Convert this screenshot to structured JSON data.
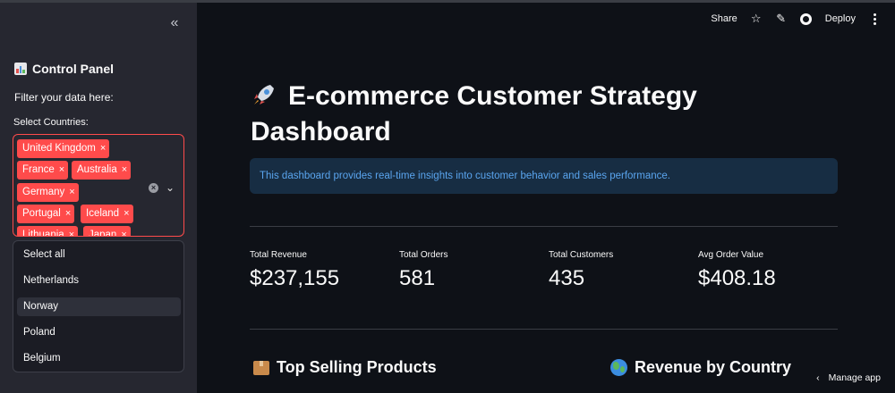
{
  "sidebar": {
    "collapse_glyph": "«",
    "title": "Control Panel",
    "subtitle": "Filter your data here:",
    "countries_label": "Select Countries:",
    "selected_tags": [
      "United Kingdom",
      "France",
      "Australia",
      "Germany",
      "Portugal",
      "Iceland",
      "Lithuania",
      "Japan"
    ],
    "tag_remove_glyph": "×",
    "clear_glyph": "×",
    "chevron_glyph": "⌄",
    "dropdown_options": [
      "Select all",
      "Netherlands",
      "Norway",
      "Poland",
      "Belgium"
    ],
    "hovered_option": "Norway"
  },
  "topbar": {
    "share_label": "Share",
    "deploy_label": "Deploy",
    "icons": [
      "star-icon",
      "pencil-icon",
      "github-icon",
      "more-vertical-icon"
    ]
  },
  "main": {
    "title": "E-commerce Customer Strategy Dashboard",
    "info_text": "This dashboard provides real-time insights into customer behavior and sales performance.",
    "metrics": [
      {
        "label": "Total Revenue",
        "value": "$237,155"
      },
      {
        "label": "Total Orders",
        "value": "581"
      },
      {
        "label": "Total Customers",
        "value": "435"
      },
      {
        "label": "Avg Order Value",
        "value": "$408.18"
      }
    ],
    "sections": {
      "top_products": "Top Selling Products",
      "revenue_by_country": "Revenue by Country"
    }
  },
  "footer": {
    "manage_label": "Manage app"
  },
  "colors": {
    "accent": "#ff4b4b",
    "info_bg": "#172d43",
    "info_text": "#5aa5ef",
    "sidebar_bg": "#262730",
    "app_bg": "#0e1117"
  }
}
